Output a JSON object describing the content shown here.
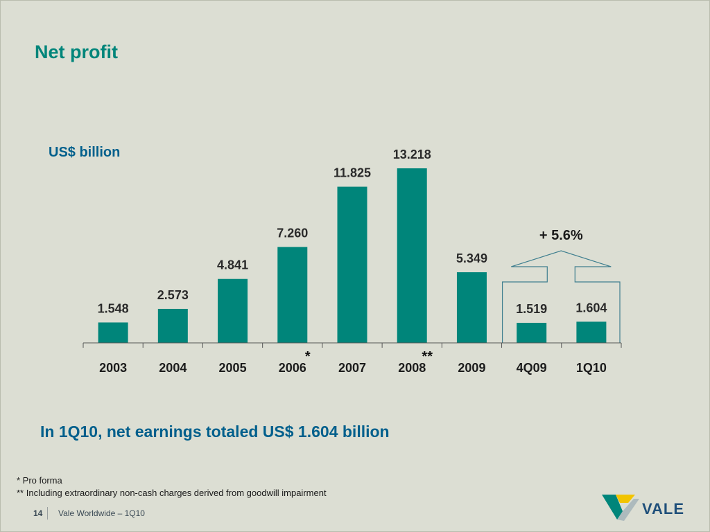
{
  "title": "Net profit",
  "unit_label": "US$ billion",
  "headline": "In 1Q10, net earnings totaled US$ 1.604 billion",
  "growth_label": "+ 5.6%",
  "footnotes": [
    "* Pro forma",
    "** Including extraordinary non-cash charges derived from goodwill impairment"
  ],
  "footer": {
    "page_number": "14",
    "text": "Vale Worldwide – 1Q10"
  },
  "logo": {
    "text": "VALE",
    "colors": {
      "green": "#00857a",
      "yellow": "#f2c400",
      "navy": "#1f4f7a"
    }
  },
  "colors": {
    "bar": "#00857a",
    "title": "#00857a",
    "headline": "#005f8c"
  },
  "chart_data": {
    "type": "bar",
    "categories": [
      "2003",
      "2004",
      "2005",
      "2006",
      "2007",
      "2008",
      "2009",
      "4Q09",
      "1Q10"
    ],
    "values": [
      1.548,
      2.573,
      4.841,
      7.26,
      11.825,
      13.218,
      5.349,
      1.519,
      1.604
    ],
    "value_labels": [
      "1.548",
      "2.573",
      "4.841",
      "7.260",
      "11.825",
      "13.218",
      "5.349",
      "1.519",
      "1.604"
    ],
    "category_notes": [
      "",
      "",
      "",
      "*",
      "",
      "**",
      "",
      "",
      ""
    ],
    "ylabel": "US$ billion",
    "ylim": [
      0,
      13.218
    ],
    "grid": false,
    "legend": "none",
    "highlight_categories": [
      "4Q09",
      "1Q10"
    ]
  }
}
